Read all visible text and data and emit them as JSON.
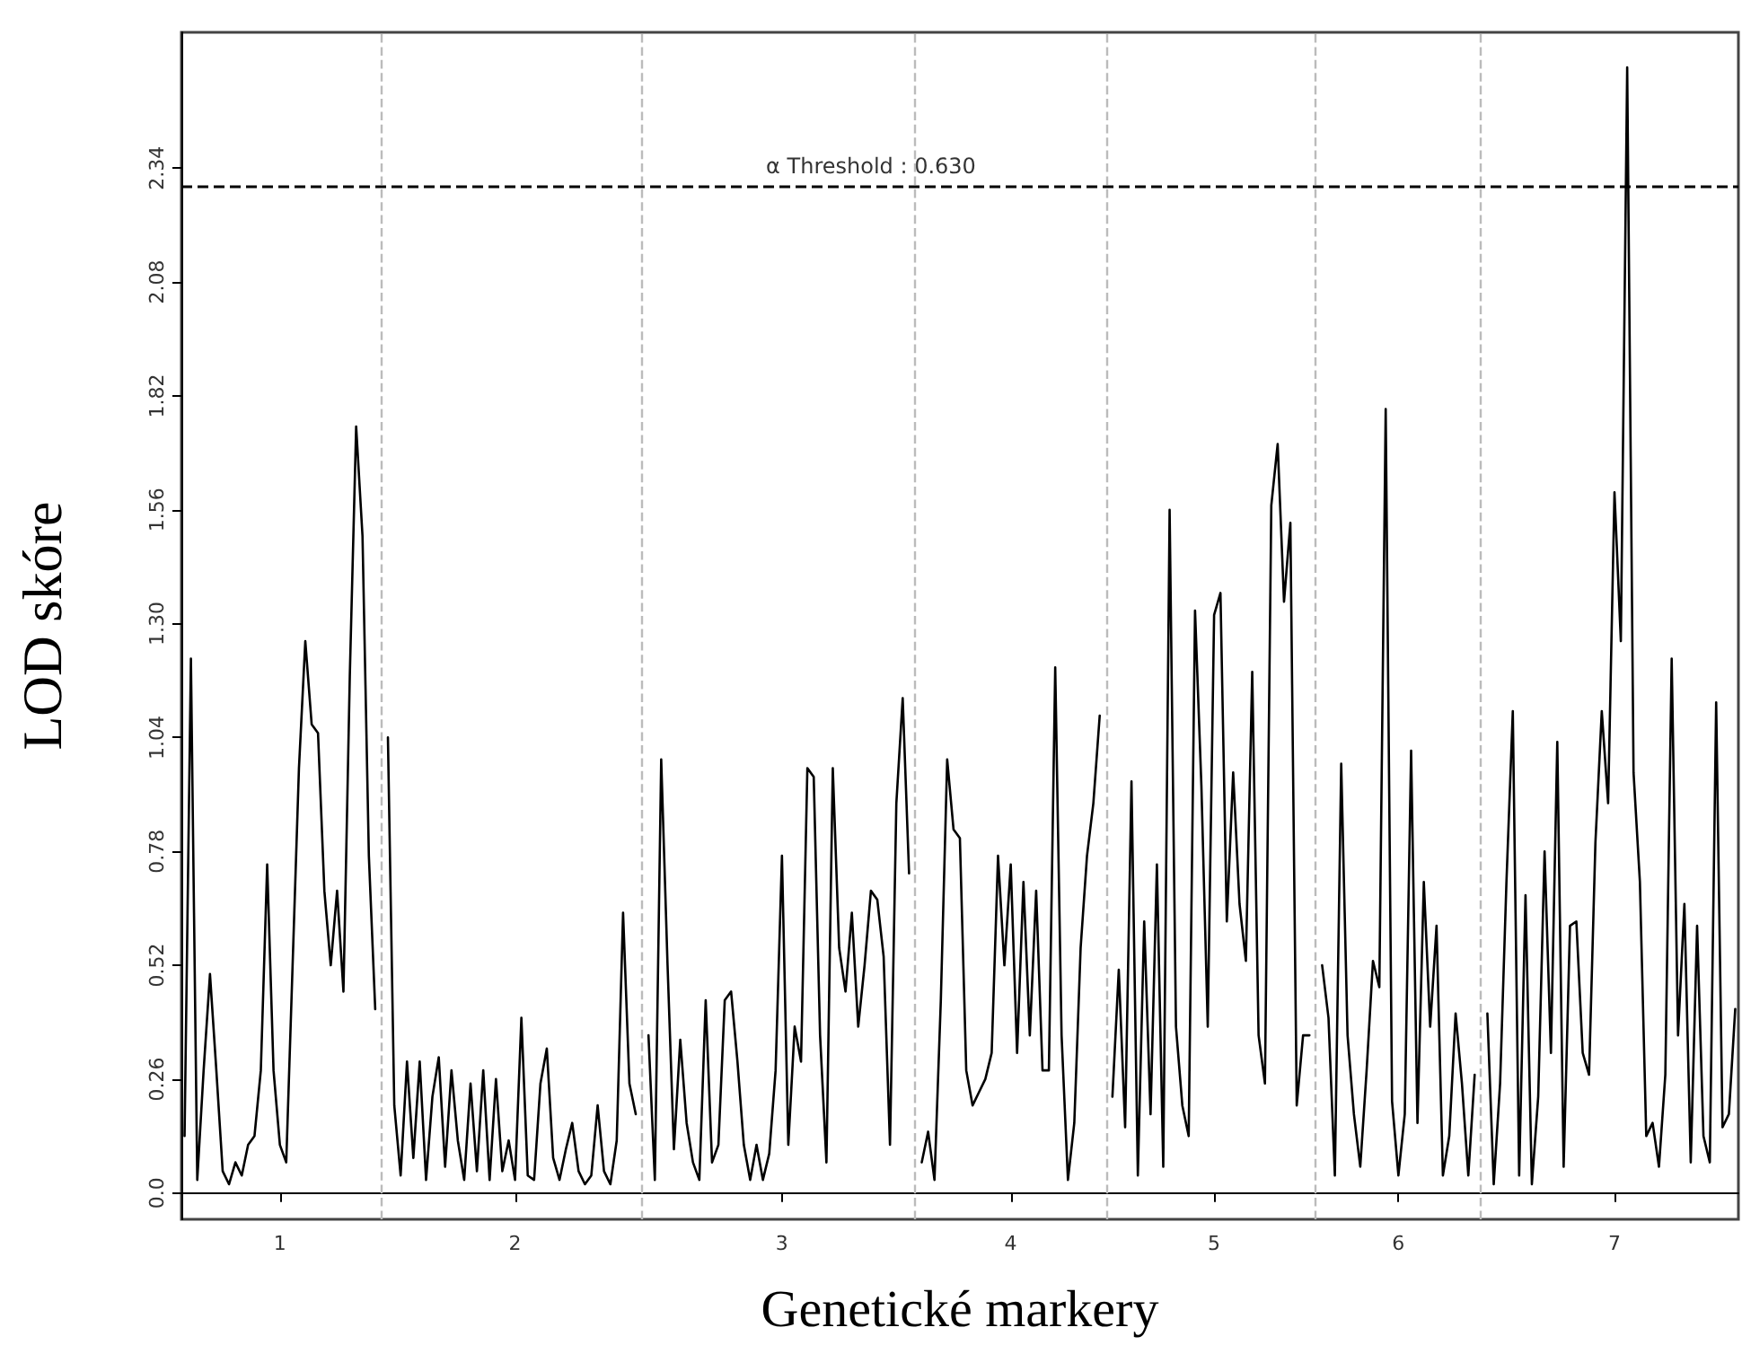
{
  "chart_data": {
    "type": "line",
    "xlabel": "Genetické markery",
    "ylabel": "LOD skóre",
    "categories": [
      null,
      null,
      null,
      null,
      null,
      null,
      null,
      null,
      null,
      null,
      null,
      null,
      null,
      null,
      null,
      "1",
      null,
      null,
      null,
      null,
      null,
      null,
      null,
      null,
      null,
      null,
      null,
      null,
      null,
      null,
      null,
      null,
      null,
      null,
      null,
      null,
      null,
      null,
      null,
      null,
      null,
      null,
      null,
      null,
      null,
      null,
      null,
      null,
      null,
      null,
      null,
      null,
      "2",
      null,
      null,
      null,
      null,
      null,
      null,
      null,
      null,
      null,
      null,
      null,
      null,
      null,
      null,
      null,
      null,
      null,
      null,
      null,
      null,
      null,
      null,
      null,
      null,
      null,
      null,
      null,
      null,
      null,
      null,
      null,
      null,
      null,
      null,
      null,
      null,
      null,
      null,
      null,
      null,
      null,
      "3",
      null,
      null,
      null,
      null,
      null,
      null,
      null,
      null,
      null,
      null,
      null,
      null,
      null,
      null,
      null,
      null,
      null,
      null,
      null,
      null,
      null,
      null,
      null,
      null,
      null,
      null,
      null,
      null,
      null,
      null,
      null,
      null,
      null,
      null,
      null,
      "4",
      null,
      null,
      null,
      null,
      null,
      null,
      null,
      null,
      null,
      null,
      null,
      null,
      null,
      null,
      null,
      null,
      null,
      null,
      null,
      null,
      null,
      null,
      null,
      null,
      null,
      null,
      null,
      null,
      null,
      null,
      null,
      "5",
      null,
      null,
      null,
      null,
      null,
      null,
      null,
      null,
      null,
      null,
      null,
      null,
      null,
      null,
      null,
      null,
      null,
      null,
      null,
      null,
      null,
      null,
      null,
      null,
      null,
      null,
      null,
      null,
      "6",
      null,
      null,
      null,
      null,
      null,
      null,
      null,
      null,
      null,
      null,
      null,
      null,
      null,
      null,
      null,
      null,
      null,
      null,
      null,
      null,
      null,
      null,
      null,
      null,
      null,
      null,
      null,
      null,
      null,
      null,
      null,
      null,
      null,
      "7",
      null,
      null,
      null,
      null,
      null,
      null,
      null,
      null,
      null,
      null,
      null,
      null,
      null,
      null,
      null,
      null,
      null,
      null,
      null
    ],
    "annotations": [
      "α Threshold : 0.630"
    ],
    "ylim": [
      -0.06,
      2.65
    ],
    "yticks": [
      {
        "value": 0,
        "label": "0.0"
      },
      0.26,
      0.52,
      0.78,
      1.04,
      {
        "value": 1.3,
        "label": "1.30"
      },
      1.56,
      1.82,
      2.08,
      2.34
    ],
    "grid": false,
    "marker": "none",
    "line_style": "solid",
    "ref_lines": [
      {
        "axis": "y",
        "value": 2.3,
        "color": "#000000",
        "line_style": "dashed"
      }
    ],
    "series": [
      {
        "color": "#000000",
        "values": [
          0.13,
          1.22,
          0.03,
          0.28,
          0.5,
          0.28,
          0.05,
          0.02,
          0.07,
          0.04,
          0.11,
          0.13,
          0.28,
          0.75,
          0.28,
          0.11,
          0.07,
          0.52,
          0.97,
          1.26,
          1.07,
          1.05,
          0.69,
          0.52,
          0.69,
          0.46,
          1.18,
          1.75,
          1.5,
          0.77,
          0.42,
          null,
          1.04,
          0.2,
          0.04,
          0.3,
          0.08,
          0.3,
          0.03,
          0.22,
          0.31,
          0.06,
          0.28,
          0.12,
          0.03,
          0.25,
          0.05,
          0.28,
          0.03,
          0.26,
          0.05,
          0.12,
          0.03,
          0.4,
          0.04,
          0.03,
          0.25,
          0.33,
          0.08,
          0.03,
          0.1,
          0.16,
          0.05,
          0.02,
          0.04,
          0.2,
          0.05,
          0.02,
          0.12,
          0.64,
          0.25,
          0.18,
          null,
          0.36,
          0.03,
          0.99,
          0.52,
          0.1,
          0.35,
          0.16,
          0.07,
          0.03,
          0.44,
          0.07,
          0.11,
          0.44,
          0.46,
          0.3,
          0.11,
          0.03,
          0.11,
          0.03,
          0.09,
          0.28,
          0.77,
          0.11,
          0.38,
          0.3,
          0.97,
          0.95,
          0.36,
          0.07,
          0.97,
          0.56,
          0.46,
          0.64,
          0.38,
          0.52,
          0.69,
          0.67,
          0.54,
          0.11,
          0.89,
          1.13,
          0.73,
          null,
          0.07,
          0.14,
          0.03,
          0.44,
          0.99,
          0.83,
          0.81,
          0.28,
          0.2,
          0.23,
          0.26,
          0.32,
          0.77,
          0.52,
          0.75,
          0.32,
          0.71,
          0.36,
          0.69,
          0.28,
          0.28,
          1.2,
          0.36,
          0.03,
          0.16,
          0.56,
          0.77,
          0.89,
          1.09,
          null,
          0.22,
          0.51,
          0.15,
          0.94,
          0.04,
          0.62,
          0.18,
          0.75,
          0.06,
          1.56,
          0.38,
          0.2,
          0.13,
          1.33,
          0.93,
          0.38,
          1.32,
          1.37,
          0.62,
          0.96,
          0.66,
          0.53,
          1.19,
          0.36,
          0.25,
          1.57,
          1.71,
          1.35,
          1.53,
          0.2,
          0.36,
          0.36,
          null,
          0.52,
          0.4,
          0.04,
          0.98,
          0.36,
          0.18,
          0.06,
          0.28,
          0.53,
          0.47,
          1.79,
          0.21,
          0.04,
          0.18,
          1.01,
          0.16,
          0.71,
          0.38,
          0.61,
          0.04,
          0.13,
          0.41,
          0.25,
          0.04,
          0.27,
          null,
          0.41,
          0.02,
          0.25,
          0.71,
          1.1,
          0.04,
          0.68,
          0.02,
          0.22,
          0.78,
          0.32,
          1.03,
          0.06,
          0.61,
          0.62,
          0.32,
          0.27,
          0.8,
          1.1,
          0.89,
          1.6,
          1.26,
          2.57,
          0.96,
          0.71,
          0.13,
          0.16,
          0.06,
          0.27,
          1.22,
          0.36,
          0.66,
          0.07,
          0.61,
          0.13,
          0.07,
          1.12,
          0.15,
          0.18,
          0.42
        ]
      }
    ]
  }
}
